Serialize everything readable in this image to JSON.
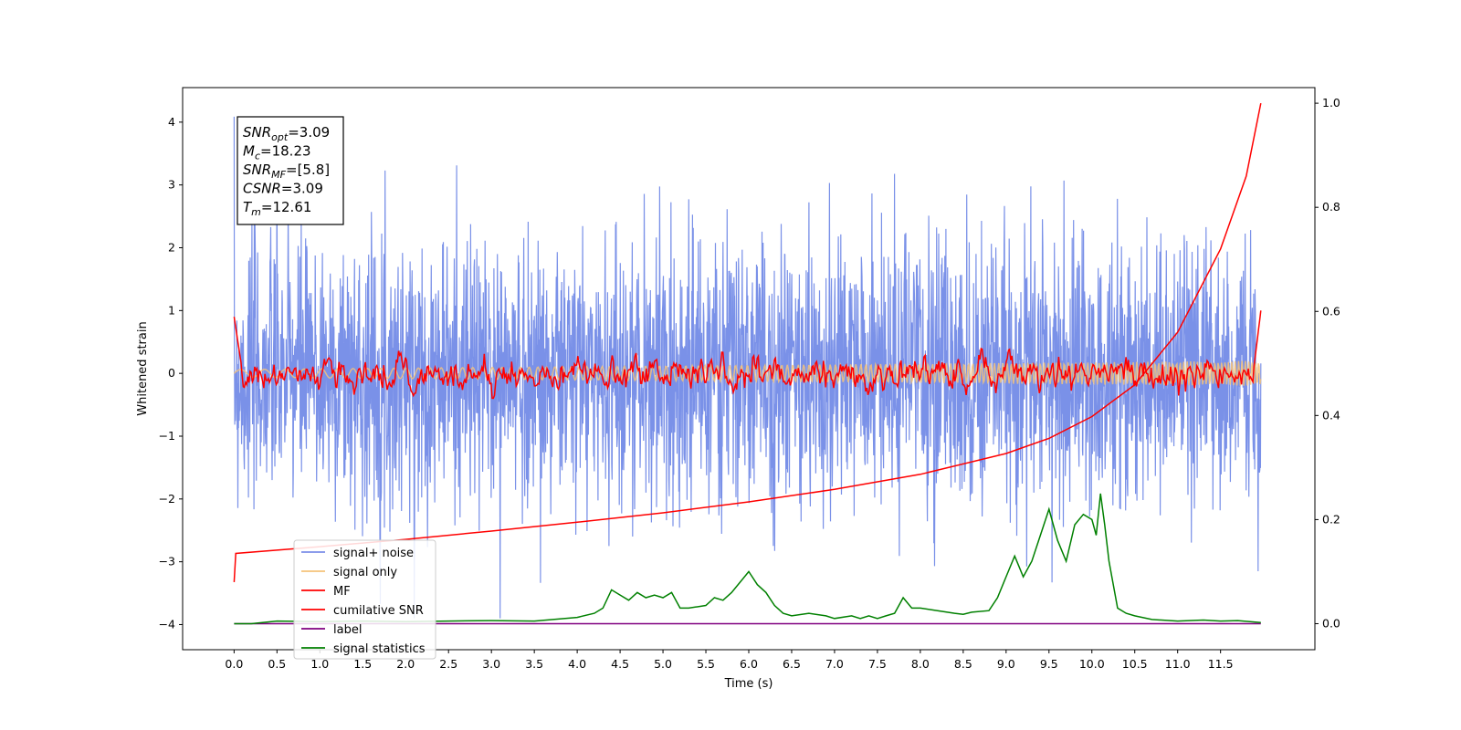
{
  "chart_data": {
    "type": "line",
    "xlabel": "Time (s)",
    "ylabel": "Whitened strain",
    "xlim": [
      -0.6,
      12.6
    ],
    "ylim": [
      -4.4,
      4.55
    ],
    "y2lim": [
      -0.05,
      1.03
    ],
    "x_ticks": [
      "0.0",
      "0.5",
      "1.0",
      "1.5",
      "2.0",
      "2.5",
      "3.0",
      "3.5",
      "4.0",
      "4.5",
      "5.0",
      "5.5",
      "6.0",
      "6.5",
      "7.0",
      "7.5",
      "8.0",
      "8.5",
      "9.0",
      "9.5",
      "10.0",
      "10.5",
      "11.0",
      "11.5"
    ],
    "y_ticks": [
      "4",
      "3",
      "2",
      "1",
      "0",
      "−1",
      "−2",
      "−3",
      "−4"
    ],
    "y2_ticks": [
      "1.0",
      "0.8",
      "0.6",
      "0.4",
      "0.2",
      "0.0"
    ],
    "info_box": [
      {
        "main": "SNR",
        "sub": "opt",
        "value": "=3.09"
      },
      {
        "main": "M",
        "sub": "c",
        "value": "=18.23"
      },
      {
        "main": "SNR",
        "sub": "MF",
        "value": "=[5.8]"
      },
      {
        "main": "CSNR",
        "sub": "",
        "value": "=3.09"
      },
      {
        "main": "T",
        "sub": "m",
        "value": "=12.61"
      }
    ],
    "legend": {
      "location": "lower-left",
      "entries": [
        {
          "label": "signal+ noise",
          "color": "#7b8ee8"
        },
        {
          "label": "signal only",
          "color": "#f5c27a"
        },
        {
          "label": "MF",
          "color": "#ff0000"
        },
        {
          "label": "cumilative SNR",
          "color": "#ff0000"
        },
        {
          "label": "label",
          "color": "#800080"
        },
        {
          "label": "signal statistics",
          "color": "#008000"
        }
      ]
    },
    "series": [
      {
        "name": "signal+ noise",
        "axis": "left",
        "color": "#6f88e6",
        "description_values": {
          "x_start": 0.0,
          "x_end": 11.97,
          "range": [
            -3.9,
            4.2
          ]
        }
      },
      {
        "name": "signal only",
        "axis": "left",
        "color": "#f5c27a",
        "description_values": {
          "x_start": 0.0,
          "x_end": 11.97,
          "amplitude": 0.2
        }
      },
      {
        "name": "MF",
        "axis": "left",
        "color": "#ff0000",
        "x": [
          0.0,
          0.05,
          0.1,
          0.2,
          0.3,
          11.85,
          11.9,
          11.95,
          11.97
        ],
        "y": [
          0.9,
          0.5,
          0.1,
          0.1,
          0.0,
          0.0,
          0.2,
          0.6,
          1.0
        ]
      },
      {
        "name": "cumilative SNR",
        "axis": "right",
        "color": "#ff0000",
        "x": [
          0.0,
          0.02,
          1.0,
          2.0,
          3.0,
          4.0,
          5.0,
          6.0,
          7.0,
          8.0,
          9.0,
          9.5,
          10.0,
          10.5,
          11.0,
          11.5,
          11.8,
          11.97
        ],
        "y": [
          0.08,
          0.135,
          0.148,
          0.162,
          0.178,
          0.195,
          0.213,
          0.234,
          0.258,
          0.287,
          0.327,
          0.356,
          0.398,
          0.459,
          0.56,
          0.72,
          0.86,
          1.0
        ]
      },
      {
        "name": "label",
        "axis": "right",
        "color": "#800080",
        "x": [
          0.0,
          11.97
        ],
        "y": [
          0.0,
          0.0
        ]
      },
      {
        "name": "signal statistics",
        "axis": "right",
        "color": "#008000",
        "x": [
          0.0,
          0.2,
          0.5,
          1.0,
          1.5,
          2.0,
          2.5,
          3.0,
          3.5,
          4.0,
          4.2,
          4.3,
          4.4,
          4.5,
          4.6,
          4.7,
          4.8,
          4.9,
          5.0,
          5.1,
          5.2,
          5.3,
          5.5,
          5.6,
          5.7,
          5.8,
          5.9,
          6.0,
          6.1,
          6.2,
          6.3,
          6.4,
          6.5,
          6.7,
          6.9,
          7.0,
          7.2,
          7.3,
          7.4,
          7.5,
          7.6,
          7.7,
          7.8,
          7.9,
          8.0,
          8.2,
          8.4,
          8.5,
          8.6,
          8.8,
          8.9,
          9.0,
          9.1,
          9.15,
          9.2,
          9.3,
          9.4,
          9.5,
          9.6,
          9.7,
          9.8,
          9.9,
          10.0,
          10.05,
          10.1,
          10.15,
          10.2,
          10.3,
          10.4,
          10.5,
          10.7,
          11.0,
          11.3,
          11.5,
          11.7,
          11.97
        ],
        "y": [
          0.0,
          0.0,
          0.005,
          0.004,
          0.005,
          0.004,
          0.005,
          0.006,
          0.005,
          0.012,
          0.02,
          0.03,
          0.065,
          0.055,
          0.045,
          0.06,
          0.05,
          0.055,
          0.05,
          0.06,
          0.03,
          0.03,
          0.035,
          0.05,
          0.045,
          0.06,
          0.08,
          0.1,
          0.075,
          0.06,
          0.035,
          0.02,
          0.015,
          0.02,
          0.015,
          0.01,
          0.015,
          0.01,
          0.015,
          0.01,
          0.015,
          0.02,
          0.05,
          0.03,
          0.03,
          0.025,
          0.02,
          0.018,
          0.022,
          0.025,
          0.05,
          0.09,
          0.13,
          0.11,
          0.09,
          0.12,
          0.17,
          0.22,
          0.16,
          0.12,
          0.19,
          0.21,
          0.2,
          0.17,
          0.25,
          0.19,
          0.12,
          0.03,
          0.02,
          0.015,
          0.008,
          0.005,
          0.007,
          0.005,
          0.006,
          0.002
        ]
      }
    ]
  }
}
